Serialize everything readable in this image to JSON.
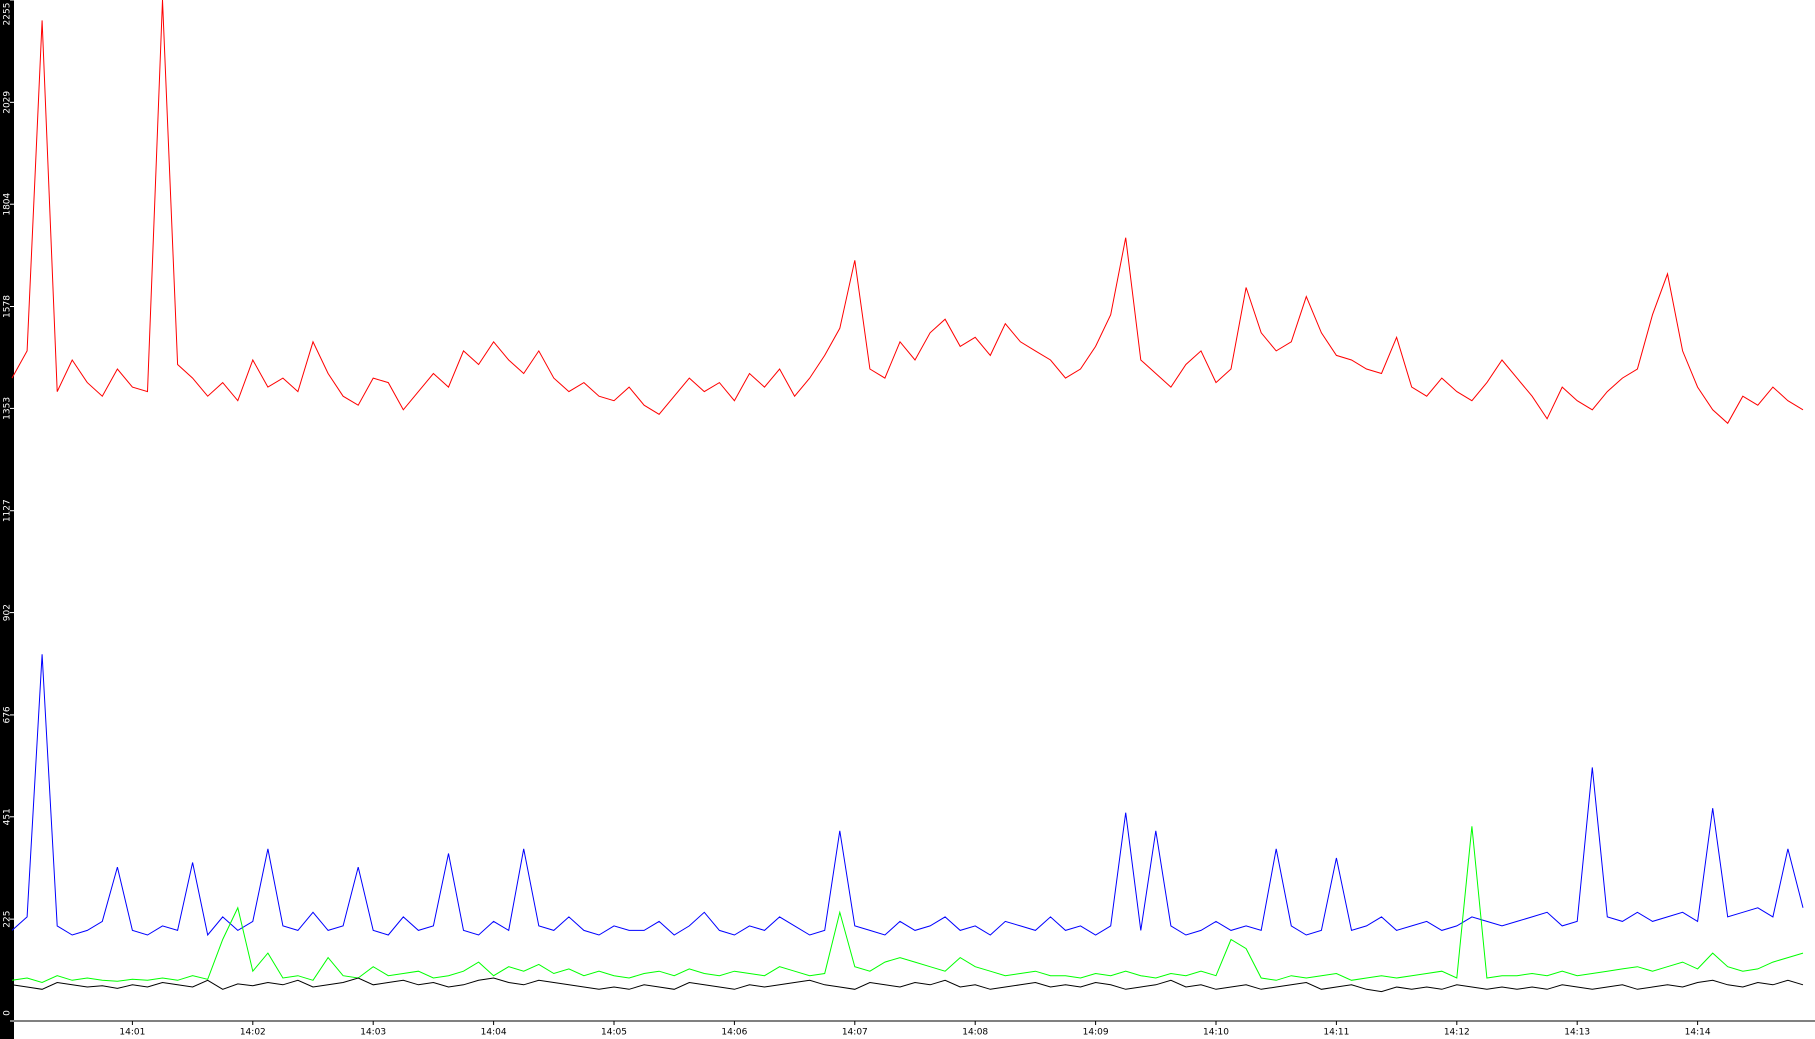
{
  "chart_data": {
    "type": "line",
    "categories": [
      null,
      null,
      null,
      null,
      null,
      null,
      null,
      null,
      "14:01",
      null,
      null,
      null,
      null,
      null,
      null,
      null,
      "14:02",
      null,
      null,
      null,
      null,
      null,
      null,
      null,
      "14:03",
      null,
      null,
      null,
      null,
      null,
      null,
      null,
      "14:04",
      null,
      null,
      null,
      null,
      null,
      null,
      null,
      "14:05",
      null,
      null,
      null,
      null,
      null,
      null,
      null,
      "14:06",
      null,
      null,
      null,
      null,
      null,
      null,
      null,
      "14:07",
      null,
      null,
      null,
      null,
      null,
      null,
      null,
      "14:08",
      null,
      null,
      null,
      null,
      null,
      null,
      null,
      "14:09",
      null,
      null,
      null,
      null,
      null,
      null,
      null,
      "14:10",
      null,
      null,
      null,
      null,
      null,
      null,
      null,
      "14:11",
      null,
      null,
      null,
      null,
      null,
      null,
      null,
      "14:12",
      null,
      null,
      null,
      null,
      null,
      null,
      null,
      "14:13",
      null,
      null,
      null,
      null,
      null,
      null,
      null,
      "14:14",
      null,
      null,
      null,
      null,
      null,
      null,
      null
    ],
    "ylim": [
      0,
      2255
    ],
    "yticks": [
      0,
      225,
      451,
      676,
      902,
      1127,
      1353,
      1578,
      1804,
      2029,
      2255
    ],
    "grid": false,
    "series": [
      {
        "color": "#ff0000",
        "values": [
          1420,
          1480,
          2210,
          1390,
          1460,
          1410,
          1380,
          1440,
          1400,
          1390,
          2255,
          1450,
          1420,
          1380,
          1410,
          1370,
          1460,
          1400,
          1420,
          1390,
          1500,
          1430,
          1380,
          1360,
          1420,
          1410,
          1350,
          1390,
          1430,
          1400,
          1480,
          1450,
          1500,
          1460,
          1430,
          1480,
          1420,
          1390,
          1410,
          1380,
          1370,
          1400,
          1360,
          1340,
          1380,
          1420,
          1390,
          1410,
          1370,
          1430,
          1400,
          1440,
          1380,
          1420,
          1470,
          1530,
          1680,
          1440,
          1420,
          1500,
          1460,
          1520,
          1550,
          1490,
          1510,
          1470,
          1540,
          1500,
          1480,
          1460,
          1420,
          1440,
          1490,
          1560,
          1730,
          1460,
          1430,
          1400,
          1450,
          1480,
          1410,
          1440,
          1620,
          1520,
          1480,
          1500,
          1600,
          1520,
          1470,
          1460,
          1440,
          1430,
          1510,
          1400,
          1380,
          1420,
          1390,
          1370,
          1410,
          1460,
          1420,
          1380,
          1330,
          1400,
          1370,
          1350,
          1390,
          1420,
          1440,
          1560,
          1650,
          1480,
          1400,
          1350,
          1320,
          1380,
          1360,
          1400,
          1370,
          1350
        ]
      },
      {
        "color": "#0000ff",
        "values": [
          200,
          230,
          810,
          210,
          190,
          200,
          220,
          340,
          200,
          190,
          210,
          200,
          350,
          190,
          230,
          200,
          220,
          380,
          210,
          200,
          240,
          200,
          210,
          340,
          200,
          190,
          230,
          200,
          210,
          370,
          200,
          190,
          220,
          200,
          380,
          210,
          200,
          230,
          200,
          190,
          210,
          200,
          200,
          220,
          190,
          210,
          240,
          200,
          190,
          210,
          200,
          230,
          210,
          190,
          200,
          420,
          210,
          200,
          190,
          220,
          200,
          210,
          230,
          200,
          210,
          190,
          220,
          210,
          200,
          230,
          200,
          210,
          190,
          210,
          460,
          200,
          420,
          210,
          190,
          200,
          220,
          200,
          210,
          200,
          380,
          210,
          190,
          200,
          360,
          200,
          210,
          230,
          200,
          210,
          220,
          200,
          210,
          230,
          220,
          210,
          220,
          230,
          240,
          210,
          220,
          560,
          230,
          220,
          240,
          220,
          230,
          240,
          220,
          470,
          230,
          240,
          250,
          230,
          380,
          250
        ]
      },
      {
        "color": "#00ff00",
        "values": [
          90,
          95,
          85,
          100,
          90,
          95,
          90,
          88,
          92,
          90,
          95,
          90,
          100,
          92,
          180,
          250,
          110,
          150,
          95,
          100,
          90,
          140,
          100,
          95,
          120,
          100,
          105,
          110,
          95,
          100,
          110,
          130,
          100,
          120,
          110,
          125,
          105,
          115,
          100,
          110,
          100,
          95,
          105,
          110,
          100,
          115,
          105,
          100,
          110,
          105,
          100,
          120,
          110,
          100,
          105,
          240,
          120,
          110,
          130,
          140,
          130,
          120,
          110,
          140,
          120,
          110,
          100,
          105,
          110,
          100,
          100,
          95,
          105,
          100,
          110,
          100,
          95,
          105,
          100,
          110,
          100,
          180,
          160,
          95,
          90,
          100,
          95,
          100,
          105,
          90,
          95,
          100,
          95,
          100,
          105,
          110,
          95,
          430,
          95,
          100,
          100,
          105,
          100,
          110,
          100,
          105,
          110,
          115,
          120,
          110,
          120,
          130,
          115,
          150,
          120,
          110,
          115,
          130,
          140,
          150
        ]
      },
      {
        "color": "#000000",
        "values": [
          80,
          75,
          70,
          85,
          80,
          75,
          78,
          72,
          80,
          75,
          85,
          80,
          75,
          90,
          70,
          82,
          78,
          85,
          80,
          90,
          75,
          80,
          85,
          95,
          80,
          85,
          90,
          80,
          85,
          75,
          80,
          90,
          95,
          85,
          80,
          90,
          85,
          80,
          75,
          70,
          75,
          70,
          80,
          75,
          70,
          85,
          80,
          75,
          70,
          80,
          75,
          80,
          85,
          90,
          80,
          75,
          70,
          85,
          80,
          75,
          85,
          80,
          90,
          75,
          80,
          70,
          75,
          80,
          85,
          75,
          80,
          75,
          85,
          80,
          70,
          75,
          80,
          90,
          75,
          80,
          70,
          75,
          80,
          70,
          75,
          80,
          85,
          70,
          75,
          80,
          70,
          65,
          75,
          70,
          75,
          70,
          80,
          75,
          70,
          75,
          70,
          75,
          70,
          80,
          75,
          70,
          75,
          80,
          70,
          75,
          80,
          75,
          85,
          90,
          80,
          75,
          85,
          80,
          90,
          80
        ]
      }
    ]
  }
}
